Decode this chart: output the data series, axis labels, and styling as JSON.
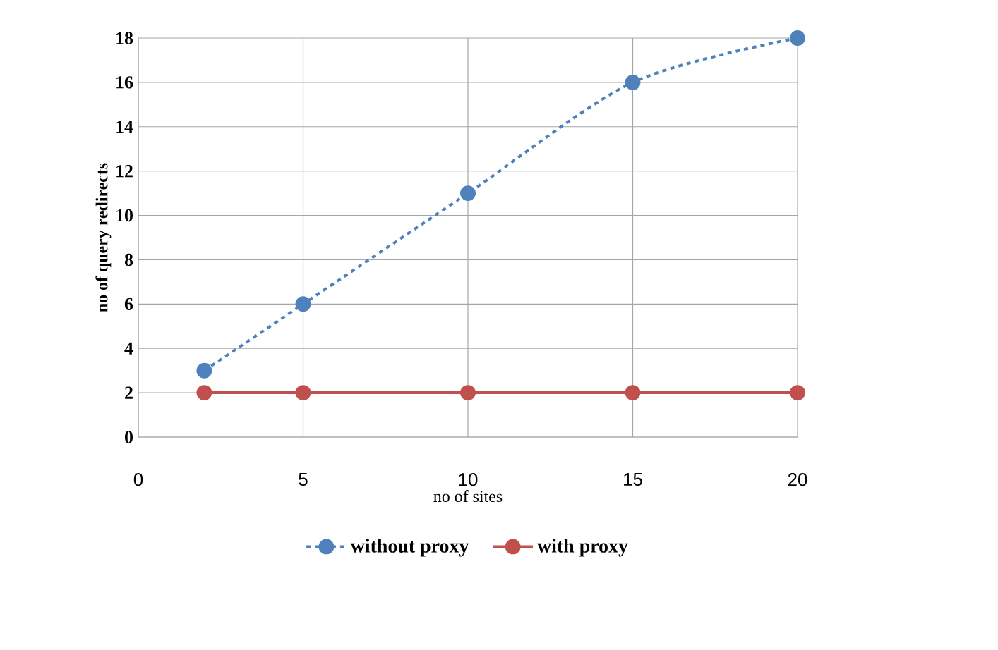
{
  "chart_data": {
    "type": "line",
    "xlabel": "no of sites",
    "ylabel": "no of query redirects",
    "xlim": [
      0,
      20
    ],
    "xticks": [
      0,
      5,
      10,
      15,
      20
    ],
    "ylim": [
      0,
      18
    ],
    "yticks": [
      0,
      2,
      4,
      6,
      8,
      10,
      12,
      14,
      16,
      18
    ],
    "grid": true,
    "legend": "bottom",
    "marker": "circle",
    "series": [
      {
        "name": "without proxy",
        "color": "#4f81bd",
        "line_style": "dashed",
        "x": [
          2,
          5,
          10,
          15,
          20
        ],
        "values": [
          3,
          6,
          11,
          16,
          18
        ]
      },
      {
        "name": "with proxy",
        "color": "#c0504d",
        "line_style": "solid",
        "x": [
          2,
          5,
          10,
          15,
          20
        ],
        "values": [
          2,
          2,
          2,
          2,
          2
        ]
      }
    ]
  }
}
